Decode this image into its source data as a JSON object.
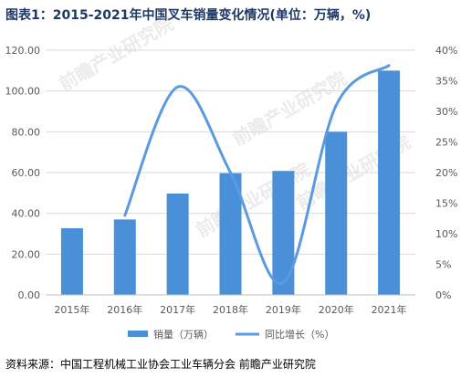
{
  "title": "图表1：2015-2021年中国叉车销量变化情况(单位：万辆，%)",
  "source": "资料来源：中国工程机械工业协会工业车辆分会 前瞻产业研究院",
  "watermark": "前瞻产业研究院",
  "colors": {
    "bar": "#4a90d9",
    "line": "#5a9be0",
    "grid": "#d9d9d9",
    "title": "#1f3864"
  },
  "chart_data": {
    "type": "bar",
    "title": "图表1：2015-2021年中国叉车销量变化情况(单位：万辆，%)",
    "categories": [
      "2015年",
      "2016年",
      "2017年",
      "2018年",
      "2019年",
      "2020年",
      "2021年"
    ],
    "series": [
      {
        "name": "销量（万辆）",
        "type": "bar",
        "axis": "left",
        "values": [
          32.7,
          37.0,
          49.7,
          59.7,
          60.8,
          80.0,
          110.0
        ]
      },
      {
        "name": "同比增长（%）",
        "type": "line",
        "axis": "right",
        "smooth": true,
        "values": [
          null,
          13.0,
          34.0,
          20.0,
          2.0,
          31.0,
          37.5
        ]
      }
    ],
    "ylim_left": [
      0,
      120
    ],
    "ylim_right": [
      0,
      40
    ],
    "yticks_left": [
      "0.00",
      "20.00",
      "40.00",
      "60.00",
      "80.00",
      "100.00",
      "120.00"
    ],
    "yticks_right": [
      "0%",
      "5%",
      "10%",
      "15%",
      "20%",
      "25%",
      "30%",
      "35%",
      "40%"
    ],
    "grid": true,
    "legend_position": "bottom"
  }
}
